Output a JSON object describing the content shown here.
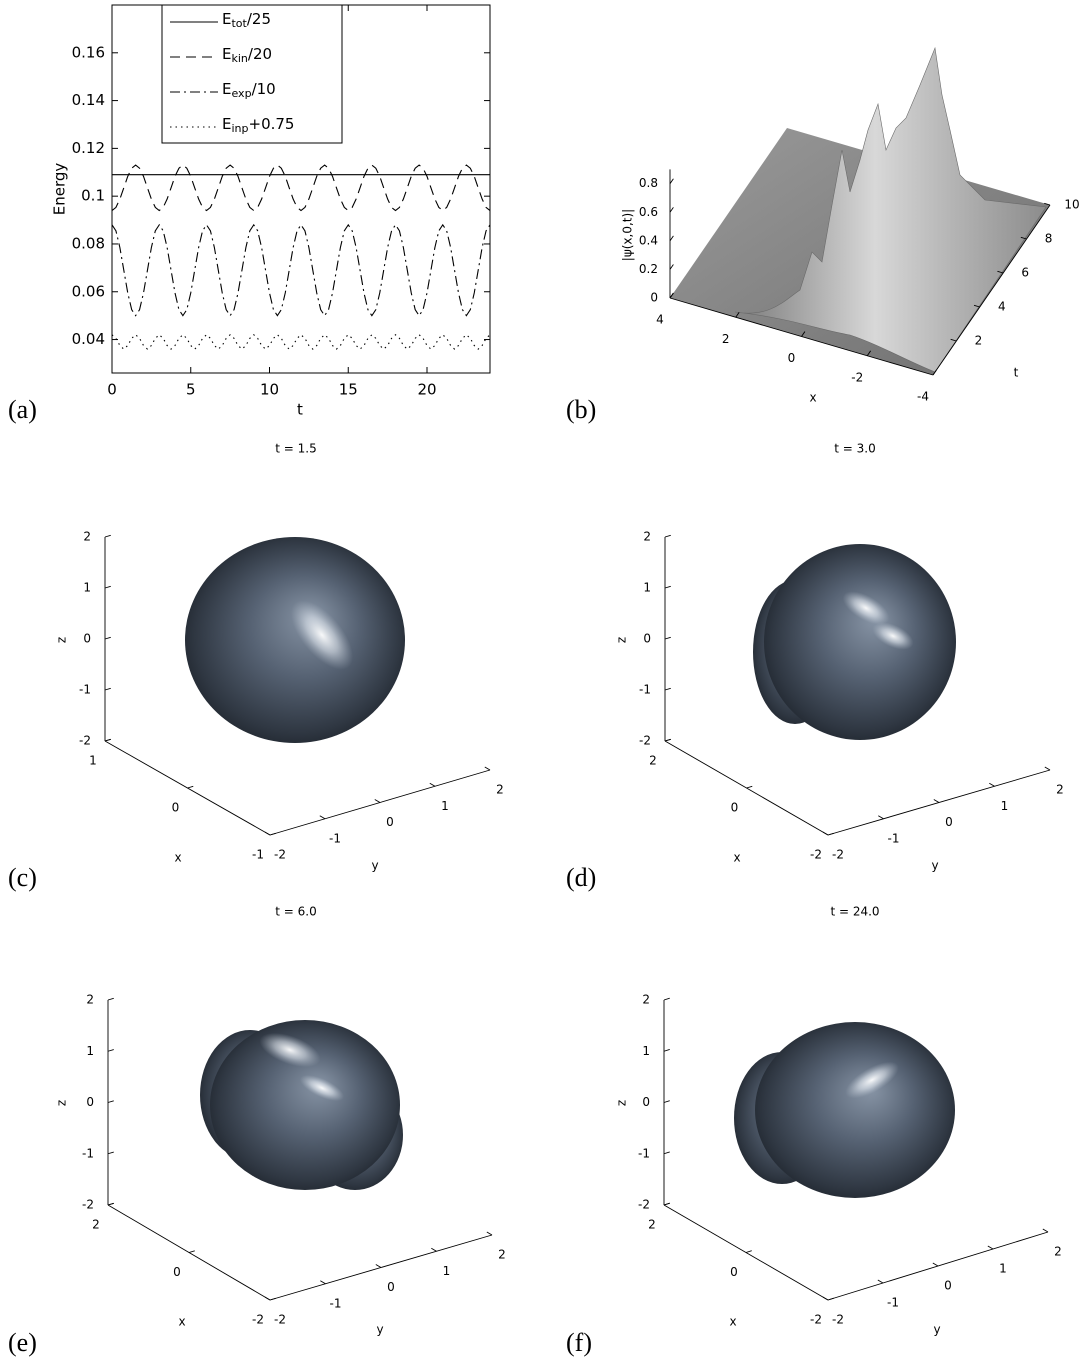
{
  "chart_data": [
    {
      "type": "line",
      "panel": "(a)",
      "xlabel": "t",
      "ylabel": "Energy",
      "xlim": [
        0,
        24
      ],
      "ylim": [
        0.026,
        0.18
      ],
      "xticks": [
        0,
        5,
        10,
        15,
        20
      ],
      "yticks": [
        0.04,
        0.06,
        0.08,
        0.1,
        0.12,
        0.14,
        0.16
      ],
      "legend": "upper left",
      "x": [
        0,
        0.25,
        0.5,
        0.75,
        1,
        1.25,
        1.5,
        1.75,
        2,
        2.25,
        2.5,
        2.75,
        3,
        3.25,
        3.5,
        3.75,
        4,
        4.25,
        4.5,
        4.75,
        5,
        5.25,
        5.5,
        5.75,
        6,
        6.25,
        6.5,
        6.75,
        7,
        7.25,
        7.5,
        7.75,
        8,
        8.25,
        8.5,
        8.75,
        9,
        9.25,
        9.5,
        9.75,
        10,
        10.25,
        10.5,
        10.75,
        11,
        11.25,
        11.5,
        11.75,
        12,
        12.25,
        12.5,
        12.75,
        13,
        13.25,
        13.5,
        13.75,
        14,
        14.25,
        14.5,
        14.75,
        15,
        15.25,
        15.5,
        15.75,
        16,
        16.25,
        16.5,
        16.75,
        17,
        17.25,
        17.5,
        17.75,
        18,
        18.25,
        18.5,
        18.75,
        19,
        19.25,
        19.5,
        19.75,
        20,
        20.25,
        20.5,
        20.75,
        21,
        21.25,
        21.5,
        21.75,
        22,
        22.25,
        22.5,
        22.75,
        23,
        23.25,
        23.5,
        23.75,
        24
      ],
      "series": [
        {
          "name": "Etot/25",
          "color": "#000000",
          "linestyle": "solid",
          "values": [
            0.109,
            0.109,
            0.109,
            0.109,
            0.109,
            0.109,
            0.109,
            0.109,
            0.109,
            0.109,
            0.109,
            0.109,
            0.109,
            0.109,
            0.109,
            0.109,
            0.109,
            0.109,
            0.109,
            0.109,
            0.109,
            0.109,
            0.109,
            0.109,
            0.109,
            0.109,
            0.109,
            0.109,
            0.109,
            0.109,
            0.109,
            0.109,
            0.109,
            0.109,
            0.109,
            0.109,
            0.109,
            0.109,
            0.109,
            0.109,
            0.109,
            0.109,
            0.109,
            0.109,
            0.109,
            0.109,
            0.109,
            0.109,
            0.109,
            0.109,
            0.109,
            0.109,
            0.109,
            0.109,
            0.109,
            0.109,
            0.109,
            0.109,
            0.109,
            0.109,
            0.109,
            0.109,
            0.109,
            0.109,
            0.109,
            0.109,
            0.109,
            0.109,
            0.109,
            0.109,
            0.109,
            0.109,
            0.109,
            0.109,
            0.109,
            0.109,
            0.109,
            0.109,
            0.109,
            0.109,
            0.109,
            0.109,
            0.109,
            0.109,
            0.109,
            0.109,
            0.109,
            0.109,
            0.109,
            0.109,
            0.109,
            0.109,
            0.109,
            0.109,
            0.109,
            0.109,
            0.109
          ]
        },
        {
          "name": "Ekin/20",
          "color": "#000000",
          "linestyle": "dashed",
          "values": [
            0.094,
            0.0953,
            0.0988,
            0.1035,
            0.1083,
            0.1117,
            0.113,
            0.1117,
            0.1083,
            0.1035,
            0.0988,
            0.0953,
            0.094,
            0.0953,
            0.0988,
            0.1035,
            0.1083,
            0.1117,
            0.113,
            0.1117,
            0.1083,
            0.1035,
            0.0988,
            0.0953,
            0.094,
            0.0953,
            0.0988,
            0.1035,
            0.1083,
            0.1117,
            0.113,
            0.1117,
            0.1083,
            0.1035,
            0.0988,
            0.0953,
            0.094,
            0.0953,
            0.0988,
            0.1035,
            0.1083,
            0.1117,
            0.113,
            0.1117,
            0.1083,
            0.1035,
            0.0988,
            0.0953,
            0.094,
            0.0953,
            0.0988,
            0.1035,
            0.1083,
            0.1117,
            0.113,
            0.1117,
            0.1083,
            0.1035,
            0.0988,
            0.0953,
            0.094,
            0.0953,
            0.0988,
            0.1035,
            0.1083,
            0.1117,
            0.113,
            0.1117,
            0.1083,
            0.1035,
            0.0988,
            0.0953,
            0.094,
            0.0953,
            0.0988,
            0.1035,
            0.1083,
            0.1117,
            0.113,
            0.1117,
            0.1083,
            0.1035,
            0.0988,
            0.0953,
            0.094,
            0.0953,
            0.0988,
            0.1035,
            0.1083,
            0.1117,
            0.113,
            0.1117,
            0.1083,
            0.1035,
            0.0988,
            0.0953,
            0.094
          ]
        },
        {
          "name": "Eexp/10",
          "color": "#000000",
          "linestyle": "dashdot",
          "values": [
            0.088,
            0.0855,
            0.0785,
            0.069,
            0.0595,
            0.0525,
            0.05,
            0.0525,
            0.0595,
            0.069,
            0.0785,
            0.0855,
            0.088,
            0.0855,
            0.0785,
            0.069,
            0.0595,
            0.0525,
            0.05,
            0.0525,
            0.0595,
            0.069,
            0.0785,
            0.0855,
            0.088,
            0.0855,
            0.0785,
            0.069,
            0.0595,
            0.0525,
            0.05,
            0.0525,
            0.0595,
            0.069,
            0.0785,
            0.0855,
            0.088,
            0.0855,
            0.0785,
            0.069,
            0.0595,
            0.0525,
            0.05,
            0.0525,
            0.0595,
            0.069,
            0.0785,
            0.0855,
            0.088,
            0.0855,
            0.0785,
            0.069,
            0.0595,
            0.0525,
            0.05,
            0.0525,
            0.0595,
            0.069,
            0.0785,
            0.0855,
            0.088,
            0.0855,
            0.0785,
            0.069,
            0.0595,
            0.0525,
            0.05,
            0.0525,
            0.0595,
            0.069,
            0.0785,
            0.0855,
            0.088,
            0.0855,
            0.0785,
            0.069,
            0.0595,
            0.0525,
            0.05,
            0.0525,
            0.0595,
            0.069,
            0.0785,
            0.0855,
            0.088,
            0.0855,
            0.0785,
            0.069,
            0.0595,
            0.0525,
            0.05,
            0.0525,
            0.0595,
            0.069,
            0.0785,
            0.0855,
            0.088
          ]
        },
        {
          "name": "Einp+0.75",
          "color": "#000000",
          "linestyle": "dotted",
          "values": [
            0.042,
            0.0405,
            0.0375,
            0.036,
            0.0375,
            0.0405,
            0.042,
            0.0405,
            0.0375,
            0.036,
            0.0375,
            0.0405,
            0.042,
            0.0405,
            0.0375,
            0.036,
            0.0375,
            0.0405,
            0.042,
            0.0405,
            0.0375,
            0.036,
            0.0375,
            0.0405,
            0.042,
            0.0405,
            0.0375,
            0.036,
            0.0375,
            0.0405,
            0.042,
            0.0405,
            0.0375,
            0.036,
            0.0375,
            0.0405,
            0.042,
            0.0405,
            0.0375,
            0.036,
            0.0375,
            0.0405,
            0.042,
            0.0405,
            0.0375,
            0.036,
            0.0375,
            0.0405,
            0.042,
            0.0405,
            0.0375,
            0.036,
            0.0375,
            0.0405,
            0.042,
            0.0405,
            0.0375,
            0.036,
            0.0375,
            0.0405,
            0.042,
            0.0405,
            0.0375,
            0.036,
            0.0375,
            0.0405,
            0.042,
            0.0405,
            0.0375,
            0.036,
            0.0375,
            0.0405,
            0.042,
            0.0405,
            0.0375,
            0.036,
            0.0375,
            0.0405,
            0.042,
            0.0405,
            0.0375,
            0.036,
            0.0375,
            0.0405,
            0.042,
            0.0405,
            0.0375,
            0.036,
            0.0375,
            0.0405,
            0.042,
            0.0405,
            0.0375,
            0.036,
            0.0375,
            0.0405,
            0.042
          ]
        }
      ]
    },
    {
      "type": "surface3d",
      "panel": "(b)",
      "xlabel": "x",
      "ylabel": "t",
      "zlabel": "|ψ(x,0,t)|",
      "xlim": [
        -4,
        4
      ],
      "ylim": [
        0,
        10
      ],
      "zlim": [
        0,
        0.9
      ],
      "xticks": [
        -4,
        -2,
        0,
        2,
        4
      ],
      "yticks": [
        2,
        4,
        6,
        8,
        10
      ],
      "zticks": [
        0,
        0.2,
        0.4,
        0.6,
        0.8
      ]
    },
    {
      "type": "isosurface",
      "panel": "(c)",
      "title": "t = 1.5",
      "xlabel": "x",
      "ylabel": "y",
      "zlabel": "z",
      "xlim": [
        -1,
        1
      ],
      "ylim": [
        -2,
        2
      ],
      "zlim": [
        -2,
        2
      ],
      "xticks": [
        -1,
        0,
        1
      ],
      "yticks": [
        -2,
        -1,
        0,
        1,
        2
      ],
      "zticks": [
        -2,
        -1,
        0,
        1,
        2
      ]
    },
    {
      "type": "isosurface",
      "panel": "(d)",
      "title": "t = 3.0",
      "xlabel": "x",
      "ylabel": "y",
      "zlabel": "z",
      "xlim": [
        -2,
        2
      ],
      "ylim": [
        -2,
        2
      ],
      "zlim": [
        -2,
        2
      ],
      "xticks": [
        -2,
        0,
        2
      ],
      "yticks": [
        -2,
        -1,
        0,
        1,
        2
      ],
      "zticks": [
        -2,
        -1,
        0,
        1,
        2
      ]
    },
    {
      "type": "isosurface",
      "panel": "(e)",
      "title": "t = 6.0",
      "xlabel": "x",
      "ylabel": "y",
      "zlabel": "z",
      "xlim": [
        -2,
        2
      ],
      "ylim": [
        -2,
        2
      ],
      "zlim": [
        -2,
        2
      ],
      "xticks": [
        -2,
        0,
        2
      ],
      "yticks": [
        -2,
        -1,
        0,
        1,
        2
      ],
      "zticks": [
        -2,
        -1,
        0,
        1,
        2
      ]
    },
    {
      "type": "isosurface",
      "panel": "(f)",
      "title": "t = 24.0",
      "xlabel": "x",
      "ylabel": "y",
      "zlabel": "z",
      "xlim": [
        -2,
        2
      ],
      "ylim": [
        -2,
        2
      ],
      "zlim": [
        -2,
        2
      ],
      "xticks": [
        -2,
        0,
        2
      ],
      "yticks": [
        -2,
        -1,
        0,
        1,
        2
      ],
      "zticks": [
        -2,
        -1,
        0,
        1,
        2
      ]
    }
  ]
}
